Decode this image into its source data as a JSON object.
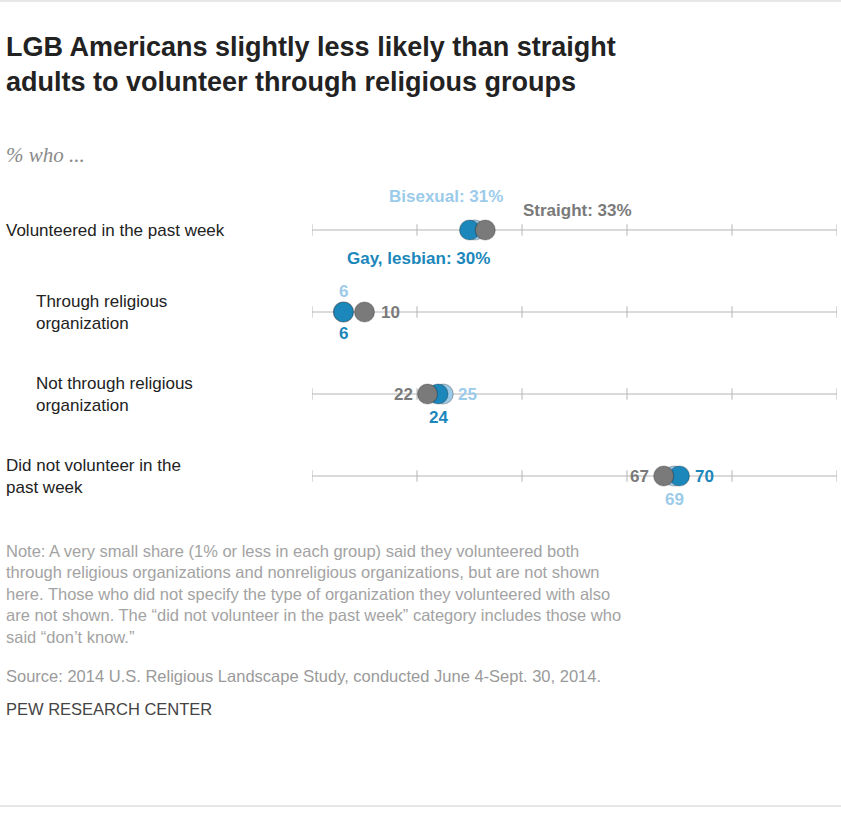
{
  "chart_data": {
    "type": "scatter",
    "title": "LGB Americans slightly less likely than straight adults to volunteer through religious groups",
    "subtitle": "% who ...",
    "orientation": "horizontal",
    "marker": "circle",
    "data_labels": true,
    "tick_labels": false,
    "categories": [
      "Volunteered in the past week",
      "Through religious organization",
      "Not through religious organization",
      "Did not volunteer in the past week"
    ],
    "series": [
      {
        "name": "Bisexual",
        "color": "#9ccbea",
        "values": [
          31,
          6,
          25,
          69
        ],
        "value_labels": [
          "Bisexual: 31%",
          "6",
          "25",
          "69"
        ]
      },
      {
        "name": "Gay, lesbian",
        "color": "#1b87bb",
        "values": [
          30,
          6,
          24,
          70
        ],
        "value_labels": [
          "Gay, lesbian: 30%",
          "6",
          "24",
          "70"
        ]
      },
      {
        "name": "Straight",
        "color": "#7a7a7a",
        "values": [
          33,
          10,
          22,
          67
        ],
        "value_labels": [
          "Straight: 33%",
          "10",
          "22",
          "67"
        ]
      }
    ],
    "xlim": [
      0,
      100
    ],
    "xticks": [
      0,
      20,
      40,
      60,
      80,
      100
    ],
    "annotations": [
      "Note: A very small share (1% or less in each group) said they volunteered both through religious organizations and nonreligious organizations, but are not shown here. Those who did not specify the type of organization they volunteered with also are not shown. The “did not volunteer in the past week” category includes those who said “don’t know.”",
      "Source: 2014 U.S. Religious Landscape Study, conducted June 4-Sept. 30, 2014.",
      "PEW RESEARCH CENTER"
    ]
  }
}
